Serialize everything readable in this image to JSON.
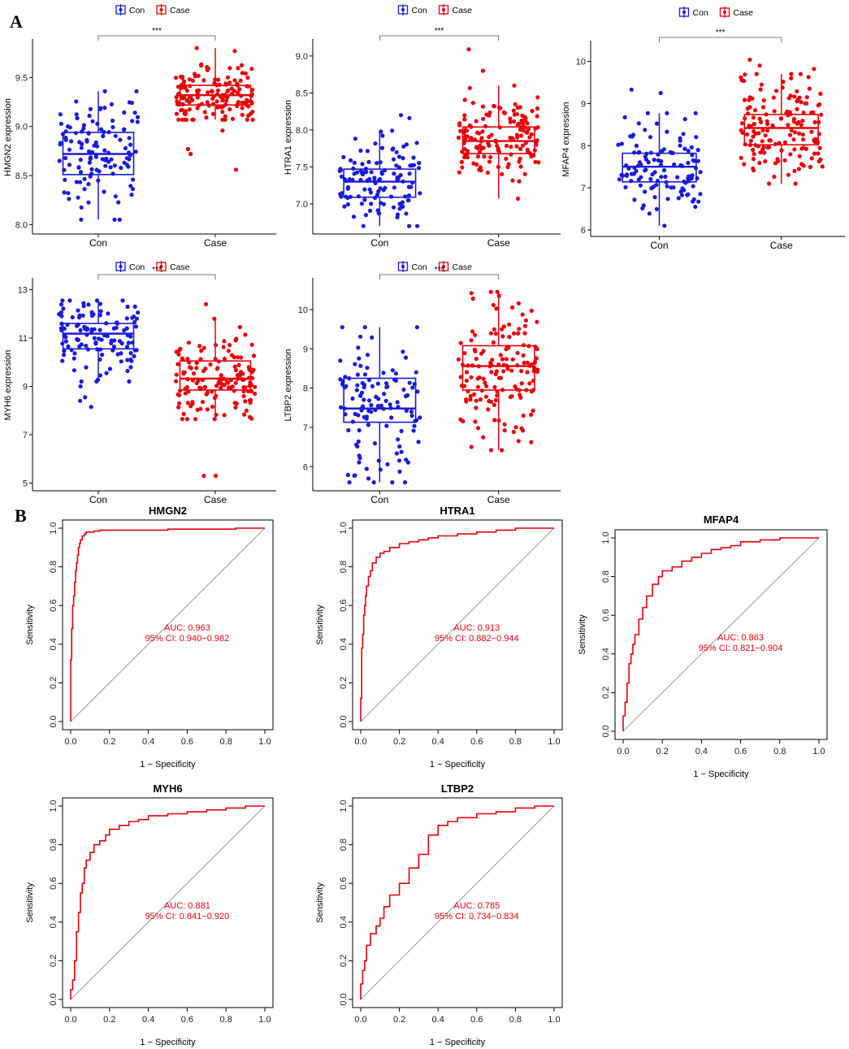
{
  "panel_labels": {
    "a": "A",
    "b": "B"
  },
  "colors": {
    "con": "#1a1adb",
    "case": "#e8000b",
    "roc_line": "#e8000b",
    "diagonal": "#a0a0a0"
  },
  "legend": {
    "con": "Con",
    "case": "Case"
  },
  "chart_data": [
    {
      "type": "box",
      "gene": "HMGN2",
      "ylabel": "HMGN2 expression",
      "categories": [
        "Con",
        "Case"
      ],
      "ylim": [
        7.97,
        9.81
      ],
      "yticks": [
        8.0,
        8.5,
        9.0,
        9.5
      ],
      "tick_labels": [
        "8.0",
        "8.5",
        "9.0",
        "9.5"
      ],
      "significance": "***",
      "boxes": [
        {
          "group": "Con",
          "min": 8.05,
          "q1": 8.51,
          "median": 8.72,
          "q3": 8.94,
          "max": 9.36,
          "n": 120,
          "extra": []
        },
        {
          "group": "Case",
          "min": 9.07,
          "q1": 9.22,
          "median": 9.32,
          "q3": 9.42,
          "max": 9.8,
          "n": 150,
          "extra": [
            8.56,
            8.77,
            8.72,
            8.96
          ]
        }
      ]
    },
    {
      "type": "box",
      "gene": "HTRA1",
      "ylabel": "HTRA1 expression",
      "categories": [
        "Con",
        "Case"
      ],
      "ylim": [
        6.68,
        9.12
      ],
      "yticks": [
        7.0,
        7.5,
        8.0,
        8.5,
        9.0
      ],
      "tick_labels": [
        "7.0",
        "7.5",
        "8.0",
        "8.5",
        "9.0"
      ],
      "significance": "***",
      "boxes": [
        {
          "group": "Con",
          "min": 6.7,
          "q1": 7.09,
          "median": 7.3,
          "q3": 7.47,
          "max": 7.99,
          "n": 120,
          "extra": [
            8.2,
            8.16
          ]
        },
        {
          "group": "Case",
          "min": 7.07,
          "q1": 7.68,
          "median": 7.85,
          "q3": 8.04,
          "max": 8.6,
          "n": 150,
          "extra": [
            9.09,
            8.8
          ]
        }
      ]
    },
    {
      "type": "box",
      "gene": "MFAP4",
      "ylabel": "MFAP4 expression",
      "categories": [
        "Con",
        "Case"
      ],
      "ylim": [
        6.0,
        10.3
      ],
      "yticks": [
        6,
        7,
        8,
        9,
        10
      ],
      "tick_labels": [
        "6",
        "7",
        "8",
        "9",
        "10"
      ],
      "significance": "***",
      "boxes": [
        {
          "group": "Con",
          "min": 6.1,
          "q1": 7.14,
          "median": 7.5,
          "q3": 7.82,
          "max": 8.77,
          "n": 120,
          "extra": [
            9.33,
            9.25
          ]
        },
        {
          "group": "Case",
          "min": 7.1,
          "q1": 8.02,
          "median": 8.42,
          "q3": 8.74,
          "max": 9.7,
          "n": 150,
          "extra": [
            10.04,
            9.9,
            9.82
          ]
        }
      ]
    },
    {
      "type": "box",
      "gene": "MYH6",
      "ylabel": "MYH6 expression",
      "categories": [
        "Con",
        "Case"
      ],
      "ylim": [
        4.95,
        13.15
      ],
      "yticks": [
        5,
        7,
        9,
        11,
        13
      ],
      "tick_labels": [
        "5",
        "7",
        "9",
        "11",
        "13"
      ],
      "significance": "***",
      "boxes": [
        {
          "group": "Con",
          "min": 9.2,
          "q1": 10.55,
          "median": 11.18,
          "q3": 11.6,
          "max": 12.55,
          "n": 120,
          "extra": [
            8.15,
            8.4,
            8.55,
            9.0
          ]
        },
        {
          "group": "Case",
          "min": 7.65,
          "q1": 8.85,
          "median": 9.32,
          "q3": 10.05,
          "max": 11.8,
          "n": 150,
          "extra": [
            5.3,
            5.3,
            12.4
          ]
        }
      ]
    },
    {
      "type": "box",
      "gene": "LTBP2",
      "ylabel": "LTBP2 expression",
      "categories": [
        "Con",
        "Case"
      ],
      "ylim": [
        5.55,
        10.6
      ],
      "yticks": [
        6,
        7,
        8,
        9,
        10
      ],
      "tick_labels": [
        "6",
        "7",
        "8",
        "9",
        "10"
      ],
      "significance": "***",
      "boxes": [
        {
          "group": "Con",
          "min": 5.6,
          "q1": 7.13,
          "median": 7.48,
          "q3": 8.25,
          "max": 9.55,
          "n": 120,
          "extra": []
        },
        {
          "group": "Case",
          "min": 6.42,
          "q1": 7.95,
          "median": 8.56,
          "q3": 9.08,
          "max": 10.45,
          "n": 150,
          "extra": []
        }
      ]
    },
    {
      "type": "line",
      "kind": "roc",
      "title": "HMGN2",
      "xlabel": "1 − Specificity",
      "ylabel": "Sensitivity",
      "xlim": [
        0,
        1
      ],
      "ylim": [
        0,
        1
      ],
      "ticks": [
        0.0,
        0.2,
        0.4,
        0.6,
        0.8,
        1.0
      ],
      "tick_labels": [
        "0.0",
        "0.2",
        "0.4",
        "0.6",
        "0.8",
        "1.0"
      ],
      "auc_label": "AUC: 0.963",
      "ci_label": "95% CI: 0.940−0.982",
      "x": [
        0,
        0,
        0.005,
        0.005,
        0.01,
        0.01,
        0.015,
        0.02,
        0.025,
        0.03,
        0.035,
        0.04,
        0.045,
        0.05,
        0.06,
        0.07,
        0.08,
        0.1,
        0.12,
        0.15,
        0.2,
        0.3,
        0.5,
        0.7,
        0.85,
        0.95,
        1.0
      ],
      "y": [
        0,
        0.3,
        0.32,
        0.45,
        0.48,
        0.55,
        0.6,
        0.65,
        0.72,
        0.78,
        0.82,
        0.86,
        0.9,
        0.92,
        0.94,
        0.96,
        0.97,
        0.98,
        0.98,
        0.985,
        0.99,
        0.99,
        0.99,
        0.995,
        0.995,
        1.0,
        1.0
      ]
    },
    {
      "type": "line",
      "kind": "roc",
      "title": "HTRA1",
      "xlabel": "1 − Specificity",
      "ylabel": "Sensitivity",
      "xlim": [
        0,
        1
      ],
      "ylim": [
        0,
        1
      ],
      "ticks": [
        0.0,
        0.2,
        0.4,
        0.6,
        0.8,
        1.0
      ],
      "tick_labels": [
        "0.0",
        "0.2",
        "0.4",
        "0.6",
        "0.8",
        "1.0"
      ],
      "auc_label": "AUC: 0.913",
      "ci_label": "95% CI: 0.882−0.944",
      "x": [
        0,
        0.005,
        0.005,
        0.01,
        0.015,
        0.02,
        0.025,
        0.03,
        0.04,
        0.05,
        0.06,
        0.08,
        0.1,
        0.12,
        0.15,
        0.2,
        0.25,
        0.3,
        0.35,
        0.4,
        0.5,
        0.6,
        0.7,
        0.8,
        0.9,
        1.0
      ],
      "y": [
        0,
        0.12,
        0.3,
        0.38,
        0.45,
        0.55,
        0.6,
        0.65,
        0.7,
        0.75,
        0.78,
        0.82,
        0.85,
        0.87,
        0.88,
        0.9,
        0.92,
        0.93,
        0.94,
        0.95,
        0.96,
        0.97,
        0.98,
        0.99,
        1.0,
        1.0
      ]
    },
    {
      "type": "line",
      "kind": "roc",
      "title": "MFAP4",
      "xlabel": "1 − Specificity",
      "ylabel": "Sensitivity",
      "xlim": [
        0,
        1
      ],
      "ylim": [
        0,
        1
      ],
      "ticks": [
        0.0,
        0.2,
        0.4,
        0.6,
        0.8,
        1.0
      ],
      "tick_labels": [
        "0.0",
        "0.2",
        "0.4",
        "0.6",
        "0.8",
        "1.0"
      ],
      "auc_label": "AUC: 0.863",
      "ci_label": "95% CI: 0.821−0.904",
      "x": [
        0,
        0.01,
        0.02,
        0.03,
        0.04,
        0.05,
        0.06,
        0.08,
        0.1,
        0.12,
        0.15,
        0.18,
        0.2,
        0.25,
        0.3,
        0.35,
        0.4,
        0.45,
        0.5,
        0.55,
        0.6,
        0.7,
        0.8,
        0.9,
        1.0
      ],
      "y": [
        0,
        0.08,
        0.15,
        0.25,
        0.35,
        0.4,
        0.45,
        0.5,
        0.58,
        0.64,
        0.7,
        0.76,
        0.8,
        0.83,
        0.85,
        0.88,
        0.9,
        0.92,
        0.94,
        0.95,
        0.96,
        0.98,
        0.99,
        1.0,
        1.0
      ]
    },
    {
      "type": "line",
      "kind": "roc",
      "title": "MYH6",
      "xlabel": "1 − Specificity",
      "ylabel": "Sensitivity",
      "xlim": [
        0,
        1
      ],
      "ylim": [
        0,
        1
      ],
      "ticks": [
        0.0,
        0.2,
        0.4,
        0.6,
        0.8,
        1.0
      ],
      "tick_labels": [
        "0.0",
        "0.2",
        "0.4",
        "0.6",
        "0.8",
        "1.0"
      ],
      "auc_label": "AUC: 0.881",
      "ci_label": "95% CI: 0.841−0.920",
      "x": [
        0,
        0.01,
        0.02,
        0.03,
        0.04,
        0.05,
        0.06,
        0.07,
        0.08,
        0.1,
        0.12,
        0.15,
        0.18,
        0.2,
        0.25,
        0.3,
        0.35,
        0.4,
        0.5,
        0.6,
        0.7,
        0.8,
        0.9,
        1.0
      ],
      "y": [
        0,
        0.05,
        0.1,
        0.2,
        0.35,
        0.45,
        0.55,
        0.6,
        0.68,
        0.72,
        0.76,
        0.8,
        0.82,
        0.85,
        0.88,
        0.9,
        0.92,
        0.93,
        0.95,
        0.96,
        0.97,
        0.98,
        0.99,
        1.0
      ]
    },
    {
      "type": "line",
      "kind": "roc",
      "title": "LTBP2",
      "xlabel": "1 − Specificity",
      "ylabel": "Sensitivity",
      "xlim": [
        0,
        1
      ],
      "ylim": [
        0,
        1
      ],
      "ticks": [
        0.0,
        0.2,
        0.4,
        0.6,
        0.8,
        1.0
      ],
      "tick_labels": [
        "0.0",
        "0.2",
        "0.4",
        "0.6",
        "0.8",
        "1.0"
      ],
      "auc_label": "AUC: 0.785",
      "ci_label": "95% CI: 0.734−0.834",
      "x": [
        0,
        0.01,
        0.02,
        0.03,
        0.05,
        0.08,
        0.1,
        0.12,
        0.15,
        0.2,
        0.25,
        0.3,
        0.35,
        0.4,
        0.45,
        0.5,
        0.6,
        0.7,
        0.8,
        0.9,
        1.0
      ],
      "y": [
        0,
        0.08,
        0.15,
        0.2,
        0.28,
        0.34,
        0.38,
        0.42,
        0.48,
        0.54,
        0.6,
        0.68,
        0.75,
        0.85,
        0.9,
        0.92,
        0.94,
        0.96,
        0.97,
        0.99,
        1.0
      ]
    }
  ]
}
